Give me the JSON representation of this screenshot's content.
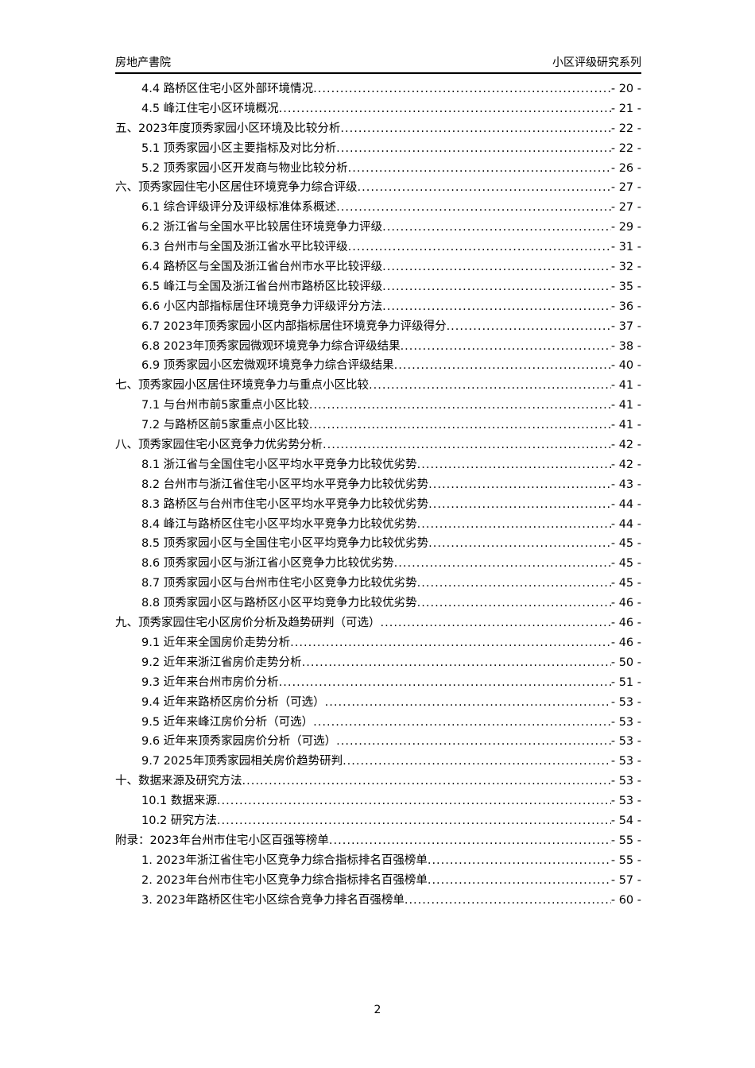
{
  "header": {
    "left": "房地产書院",
    "right": "小区评级研究系列"
  },
  "toc": [
    {
      "level": 2,
      "title": "4.4 路桥区住宅小区外部环境情况",
      "page": "- 20 -"
    },
    {
      "level": 2,
      "title": "4.5 峰江住宅小区环境概况",
      "page": "- 21 -"
    },
    {
      "level": 1,
      "title": "五、2023年度顶秀家园小区环境及比较分析",
      "page": "- 22 -"
    },
    {
      "level": 2,
      "title": "5.1 顶秀家园小区主要指标及对比分析",
      "page": "- 22 -"
    },
    {
      "level": 2,
      "title": "5.2 顶秀家园小区开发商与物业比较分析",
      "page": "- 26 -"
    },
    {
      "level": 1,
      "title": "六、顶秀家园住宅小区居住环境竞争力综合评级",
      "page": "- 27 -"
    },
    {
      "level": 2,
      "title": "6.1 综合评级评分及评级标准体系概述",
      "page": "- 27 -"
    },
    {
      "level": 2,
      "title": "6.2 浙江省与全国水平比较居住环境竞争力评级",
      "page": "- 29 -"
    },
    {
      "level": 2,
      "title": "6.3 台州市与全国及浙江省水平比较评级",
      "page": "- 31 -"
    },
    {
      "level": 2,
      "title": "6.4 路桥区与全国及浙江省台州市水平比较评级",
      "page": "- 32 -"
    },
    {
      "level": 2,
      "title": "6.5 峰江与全国及浙江省台州市路桥区比较评级",
      "page": "- 35 -"
    },
    {
      "level": 2,
      "title": "6.6 小区内部指标居住环境竞争力评级评分方法",
      "page": "- 36 -"
    },
    {
      "level": 2,
      "title": "6.7 2023年顶秀家园小区内部指标居住环境竞争力评级得分",
      "page": "- 37 -"
    },
    {
      "level": 2,
      "title": "6.8 2023年顶秀家园微观环境竞争力综合评级结果",
      "page": "- 38 -"
    },
    {
      "level": 2,
      "title": "6.9 顶秀家园小区宏微观环境竞争力综合评级结果",
      "page": "- 40 -"
    },
    {
      "level": 1,
      "title": "七、顶秀家园小区居住环境竞争力与重点小区比较",
      "page": "- 41 -"
    },
    {
      "level": 2,
      "title": "7.1 与台州市前5家重点小区比较",
      "page": "- 41 -"
    },
    {
      "level": 2,
      "title": "7.2 与路桥区前5家重点小区比较",
      "page": "- 41 -"
    },
    {
      "level": 1,
      "title": "八、顶秀家园住宅小区竞争力优劣势分析",
      "page": "- 42 -"
    },
    {
      "level": 2,
      "title": "8.1 浙江省与全国住宅小区平均水平竞争力比较优劣势",
      "page": "- 42 -"
    },
    {
      "level": 2,
      "title": "8.2 台州市与浙江省住宅小区平均水平竞争力比较优劣势",
      "page": "- 43 -"
    },
    {
      "level": 2,
      "title": "8.3 路桥区与台州市住宅小区平均水平竞争力比较优劣势",
      "page": "- 44 -"
    },
    {
      "level": 2,
      "title": "8.4 峰江与路桥区住宅小区平均水平竞争力比较优劣势",
      "page": "- 44 -"
    },
    {
      "level": 2,
      "title": "8.5 顶秀家园小区与全国住宅小区平均竞争力比较优劣势",
      "page": "- 45 -"
    },
    {
      "level": 2,
      "title": "8.6 顶秀家园小区与浙江省小区竞争力比较优劣势",
      "page": "- 45 -"
    },
    {
      "level": 2,
      "title": "8.7 顶秀家园小区与台州市住宅小区竞争力比较优劣势",
      "page": "- 45 -"
    },
    {
      "level": 2,
      "title": "8.8 顶秀家园小区与路桥区小区平均竞争力比较优劣势",
      "page": "- 46 -"
    },
    {
      "level": 1,
      "title": "九、顶秀家园住宅小区房价分析及趋势研判（可选）",
      "page": "- 46 -"
    },
    {
      "level": 2,
      "title": "9.1 近年来全国房价走势分析",
      "page": "- 46 -"
    },
    {
      "level": 2,
      "title": "9.2 近年来浙江省房价走势分析",
      "page": "- 50 -"
    },
    {
      "level": 2,
      "title": "9.3 近年来台州市房价分析",
      "page": "- 51 -"
    },
    {
      "level": 2,
      "title": "9.4 近年来路桥区房价分析（可选）",
      "page": "- 53 -"
    },
    {
      "level": 2,
      "title": "9.5 近年来峰江房价分析（可选）",
      "page": "- 53 -"
    },
    {
      "level": 2,
      "title": "9.6 近年来顶秀家园房价分析（可选）",
      "page": "- 53 -"
    },
    {
      "level": 2,
      "title": "9.7 2025年顶秀家园相关房价趋势研判",
      "page": "- 53 -"
    },
    {
      "level": 1,
      "title": "十、数据来源及研究方法",
      "page": "- 53 -"
    },
    {
      "level": 2,
      "title": "10.1 数据来源",
      "page": "- 53 -"
    },
    {
      "level": 2,
      "title": "10.2 研究方法",
      "page": "- 54 -"
    },
    {
      "level": 1,
      "title": "附录：2023年台州市住宅小区百强等榜单",
      "page": "- 55 -"
    },
    {
      "level": 2,
      "title": "1. 2023年浙江省住宅小区竞争力综合指标排名百强榜单",
      "page": "- 55 -"
    },
    {
      "level": 2,
      "title": "2. 2023年台州市住宅小区竞争力综合指标排名百强榜单",
      "page": "- 57 -"
    },
    {
      "level": 2,
      "title": "3. 2023年路桥区住宅小区综合竞争力排名百强榜单",
      "page": "- 60 -"
    }
  ],
  "footer": {
    "page_number": "2"
  }
}
